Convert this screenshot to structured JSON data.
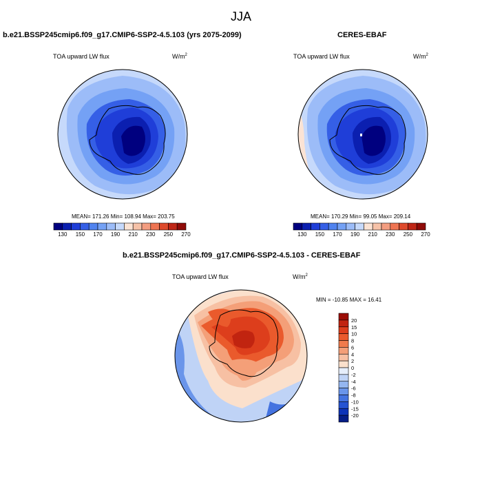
{
  "figure": {
    "season": "JJA"
  },
  "panels": {
    "model": {
      "title": "b.e21.BSSP245cmip6.f09_g17.CMIP6-SSP2-4.5.103 (yrs 2075-2099)",
      "variable": "TOA upward LW flux",
      "units_base": "W/m",
      "units_exp": "2",
      "stats": "MEAN= 171.26  Min= 108.94  Max= 203.75"
    },
    "obs": {
      "title": "CERES-EBAF",
      "variable": "TOA upward LW flux",
      "units_base": "W/m",
      "units_exp": "2",
      "stats": "MEAN= 170.29  Min=  99.05  Max= 209.14"
    },
    "diff": {
      "title": "b.e21.BSSP245cmip6.f09_g17.CMIP6-SSP2-4.5.103 - CERES-EBAF",
      "variable": "TOA upward LW flux",
      "units_base": "W/m",
      "units_exp": "2",
      "stats": "MIN = -10.85 MAX =  16.41"
    }
  },
  "chart_data": [
    {
      "type": "heatmap",
      "title": "b.e21.BSSP245cmip6.f09_g17.CMIP6-SSP2-4.5.103 (yrs 2075-2099)",
      "variable": "TOA upward LW flux",
      "units": "W/m2",
      "projection": "south polar stereographic",
      "mean": 171.26,
      "min": 108.94,
      "max": 203.75,
      "colorbar": {
        "orientation": "horizontal",
        "tick_labels": [
          "130",
          "150",
          "170",
          "190",
          "210",
          "230",
          "250",
          "270"
        ],
        "colors": [
          "#00007f",
          "#0b1fb0",
          "#1f3ed8",
          "#355fe6",
          "#5083ef",
          "#74a1f5",
          "#9cbcf8",
          "#c6d9fb",
          "#fbe3d4",
          "#f6c2a8",
          "#f39d80",
          "#ee7452",
          "#de4a2c",
          "#bf2616",
          "#8f0b08"
        ]
      }
    },
    {
      "type": "heatmap",
      "title": "CERES-EBAF",
      "variable": "TOA upward LW flux",
      "units": "W/m2",
      "projection": "south polar stereographic",
      "mean": 170.29,
      "min": 99.05,
      "max": 209.14,
      "colorbar": {
        "orientation": "horizontal",
        "tick_labels": [
          "130",
          "150",
          "170",
          "190",
          "210",
          "230",
          "250",
          "270"
        ],
        "colors": [
          "#00007f",
          "#0b1fb0",
          "#1f3ed8",
          "#355fe6",
          "#5083ef",
          "#74a1f5",
          "#9cbcf8",
          "#c6d9fb",
          "#fbe3d4",
          "#f6c2a8",
          "#f39d80",
          "#ee7452",
          "#de4a2c",
          "#bf2616",
          "#8f0b08"
        ]
      }
    },
    {
      "type": "heatmap",
      "title": "b.e21.BSSP245cmip6.f09_g17.CMIP6-SSP2-4.5.103 - CERES-EBAF",
      "variable": "TOA upward LW flux",
      "units": "W/m2",
      "projection": "south polar stereographic",
      "min": -10.85,
      "max": 16.41,
      "colorbar": {
        "orientation": "vertical",
        "tick_labels": [
          "20",
          "15",
          "10",
          "8",
          "6",
          "4",
          "2",
          "0",
          "-2",
          "-4",
          "-6",
          "-8",
          "-10",
          "-15",
          "-20"
        ],
        "colors": [
          "#9b0d05",
          "#c12410",
          "#dd3e1c",
          "#ea5a2c",
          "#f07b4c",
          "#f49f78",
          "#f7c0a3",
          "#fbe0cc",
          "#e6eefb",
          "#bfd3f6",
          "#94b6f1",
          "#6a95ea",
          "#4473e0",
          "#2553d2",
          "#0d33b8",
          "#051d86"
        ]
      }
    }
  ]
}
